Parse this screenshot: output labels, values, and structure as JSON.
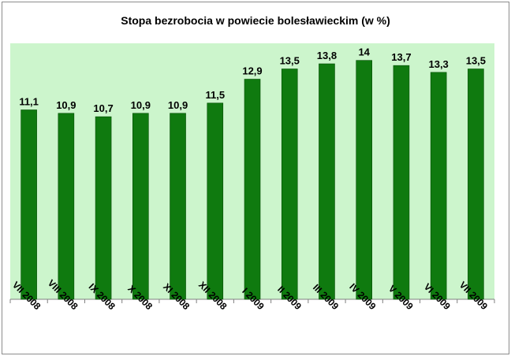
{
  "chart_data": {
    "type": "bar",
    "title": "Stopa bezrobocia w powiecie bolesławieckim (w %)",
    "categories": [
      "VII 2008",
      "VIII 2008",
      "IX 2008",
      "X 2008",
      "XI 2008",
      "XII 2008",
      "I 2009",
      "II 2009",
      "III 2009",
      "IV 2009",
      "V 2009",
      "VI 2009",
      "VII 2009"
    ],
    "values": [
      11.1,
      10.9,
      10.7,
      10.9,
      10.9,
      11.5,
      12.9,
      13.5,
      13.8,
      14,
      13.7,
      13.3,
      13.5
    ],
    "value_labels": [
      "11,1",
      "10,9",
      "10,7",
      "10,9",
      "10,9",
      "11,5",
      "12,9",
      "13,5",
      "13,8",
      "14",
      "13,7",
      "13,3",
      "13,5"
    ],
    "ylim": [
      0,
      15
    ],
    "grid": false,
    "legend": "none",
    "colors": {
      "bar": "#0f7a0f",
      "bar_edge": "#064d06",
      "plot_bg": "#ccf5cc",
      "axis": "#808080"
    }
  }
}
